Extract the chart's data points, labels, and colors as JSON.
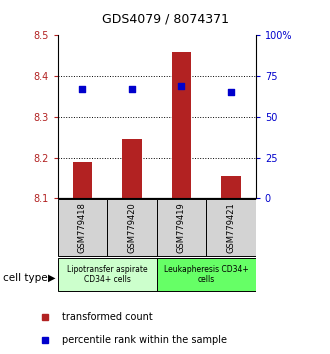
{
  "title": "GDS4079 / 8074371",
  "samples": [
    "GSM779418",
    "GSM779420",
    "GSM779419",
    "GSM779421"
  ],
  "bar_values": [
    8.19,
    8.245,
    8.46,
    8.155
  ],
  "bar_baseline": 8.1,
  "percentile_values": [
    67,
    67,
    69,
    65
  ],
  "ylim_left": [
    8.1,
    8.5
  ],
  "ylim_right": [
    0,
    100
  ],
  "yticks_left": [
    8.1,
    8.2,
    8.3,
    8.4,
    8.5
  ],
  "yticks_right": [
    0,
    25,
    50,
    75,
    100
  ],
  "ytick_labels_right": [
    "0",
    "25",
    "50",
    "75",
    "100%"
  ],
  "bar_color": "#b22222",
  "dot_color": "#0000cc",
  "label_box_color": "#d3d3d3",
  "group1_color": "#ccffcc",
  "group2_color": "#66ff66",
  "group1_label": "Lipotransfer aspirate\nCD34+ cells",
  "group2_label": "Leukapheresis CD34+\ncells",
  "cell_type_label": "cell type",
  "legend_bar_label": "transformed count",
  "legend_dot_label": "percentile rank within the sample"
}
